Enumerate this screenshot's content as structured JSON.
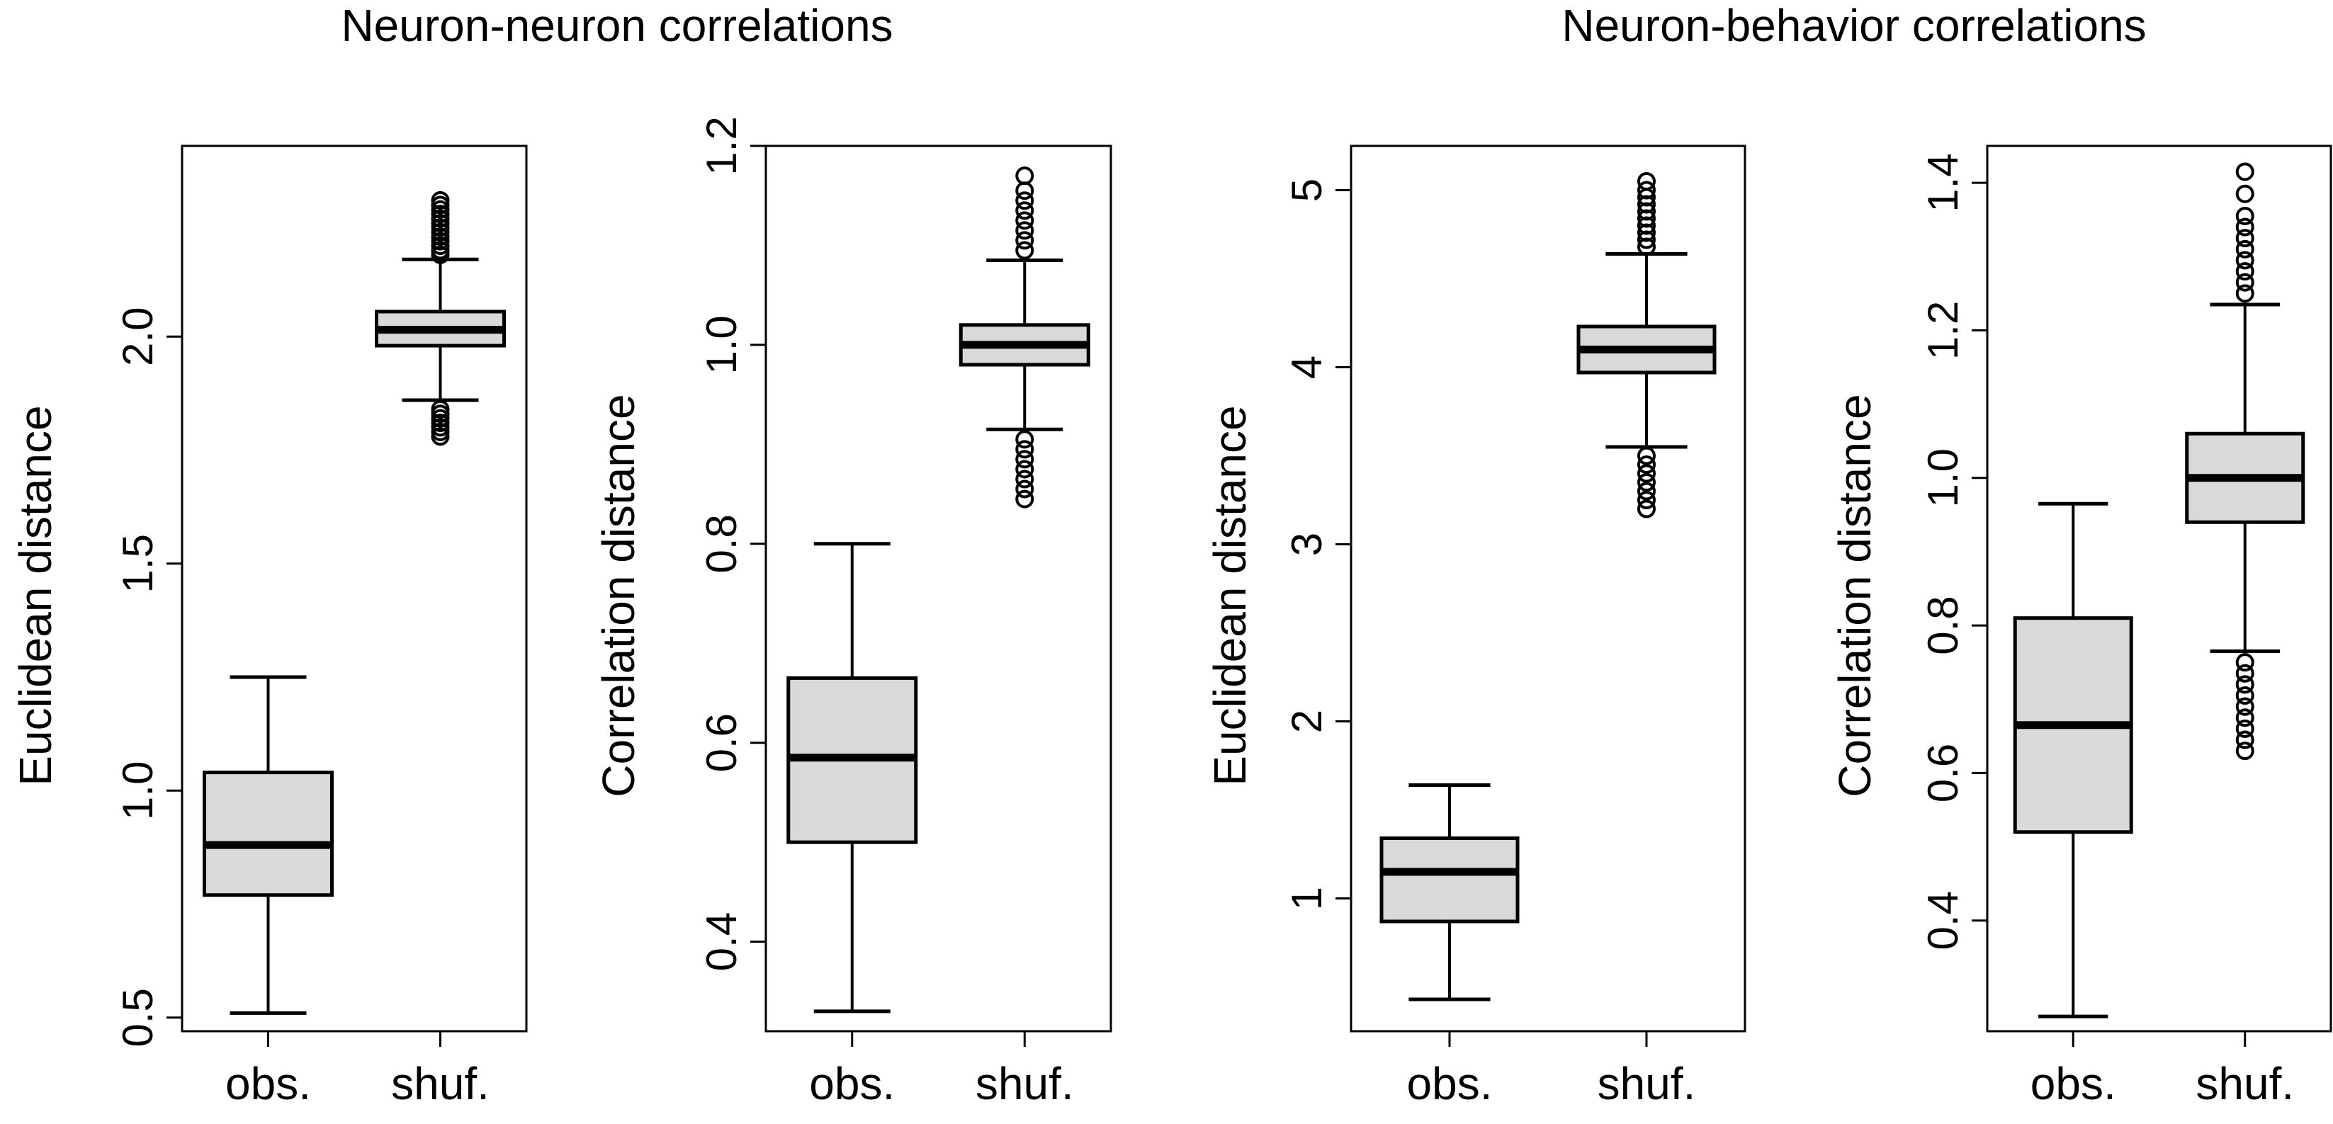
{
  "group_titles": [
    "Neuron-neuron correlations",
    "Neuron-behavior correlations"
  ],
  "colors": {
    "box_fill": "#d9d9d9",
    "line": "#000000",
    "background": "#ffffff"
  },
  "chart_data": [
    {
      "type": "boxplot",
      "group": "Neuron-neuron correlations",
      "ylabel": "Euclidean distance",
      "ylim": [
        0.47,
        2.42
      ],
      "yticks": [
        0.5,
        1.0,
        1.5,
        2.0
      ],
      "ytick_labels": [
        "0.5",
        "1.0",
        "1.5",
        "2.0"
      ],
      "categories": [
        "obs.",
        "shuf."
      ],
      "boxes": [
        {
          "label": "obs.",
          "whisker_low": 0.51,
          "q1": 0.77,
          "median": 0.88,
          "q3": 1.04,
          "whisker_high": 1.25,
          "outliers": []
        },
        {
          "label": "shuf.",
          "whisker_low": 1.86,
          "q1": 1.98,
          "median": 2.015,
          "q3": 2.055,
          "whisker_high": 2.17,
          "outliers": [
            1.78,
            1.79,
            1.8,
            1.81,
            1.82,
            1.83,
            1.84,
            2.18,
            2.19,
            2.2,
            2.21,
            2.22,
            2.23,
            2.24,
            2.25,
            2.26,
            2.27,
            2.28,
            2.29,
            2.3
          ]
        }
      ],
      "grid": false,
      "legend": false
    },
    {
      "type": "boxplot",
      "group": "Neuron-neuron correlations",
      "ylabel": "Correlation distance",
      "ylim": [
        0.31,
        1.2
      ],
      "yticks": [
        0.4,
        0.6,
        0.8,
        1.0,
        1.2
      ],
      "ytick_labels": [
        "0.4",
        "0.6",
        "0.8",
        "1.0",
        "1.2"
      ],
      "categories": [
        "obs.",
        "shuf."
      ],
      "boxes": [
        {
          "label": "obs.",
          "whisker_low": 0.33,
          "q1": 0.5,
          "median": 0.585,
          "q3": 0.665,
          "whisker_high": 0.8,
          "outliers": []
        },
        {
          "label": "shuf.",
          "whisker_low": 0.915,
          "q1": 0.98,
          "median": 1.0,
          "q3": 1.02,
          "whisker_high": 1.085,
          "outliers": [
            0.845,
            0.855,
            0.865,
            0.875,
            0.885,
            0.895,
            0.905,
            1.095,
            1.105,
            1.115,
            1.125,
            1.135,
            1.145,
            1.155,
            1.17
          ]
        }
      ],
      "grid": false,
      "legend": false
    },
    {
      "type": "boxplot",
      "group": "Neuron-behavior correlations",
      "ylabel": "Euclidean distance",
      "ylim": [
        0.25,
        5.25
      ],
      "yticks": [
        1,
        2,
        3,
        4,
        5
      ],
      "ytick_labels": [
        "1",
        "2",
        "3",
        "4",
        "5"
      ],
      "categories": [
        "obs.",
        "shuf."
      ],
      "boxes": [
        {
          "label": "obs.",
          "whisker_low": 0.43,
          "q1": 0.87,
          "median": 1.15,
          "q3": 1.34,
          "whisker_high": 1.64,
          "outliers": []
        },
        {
          "label": "shuf.",
          "whisker_low": 3.55,
          "q1": 3.97,
          "median": 4.1,
          "q3": 4.23,
          "whisker_high": 4.64,
          "outliers": [
            3.2,
            3.25,
            3.3,
            3.35,
            3.4,
            3.45,
            3.5,
            4.68,
            4.72,
            4.76,
            4.8,
            4.84,
            4.88,
            4.92,
            4.96,
            5.0,
            5.05
          ]
        }
      ],
      "grid": false,
      "legend": false
    },
    {
      "type": "boxplot",
      "group": "Neuron-behavior correlations",
      "ylabel": "Correlation distance",
      "ylim": [
        0.25,
        1.45
      ],
      "yticks": [
        0.4,
        0.6,
        0.8,
        1.0,
        1.2,
        1.4
      ],
      "ytick_labels": [
        "0.4",
        "0.6",
        "0.8",
        "1.0",
        "1.2",
        "1.4"
      ],
      "categories": [
        "obs.",
        "shuf."
      ],
      "boxes": [
        {
          "label": "obs.",
          "whisker_low": 0.27,
          "q1": 0.52,
          "median": 0.665,
          "q3": 0.81,
          "whisker_high": 0.965,
          "outliers": []
        },
        {
          "label": "shuf.",
          "whisker_low": 0.765,
          "q1": 0.94,
          "median": 1.0,
          "q3": 1.06,
          "whisker_high": 1.235,
          "outliers": [
            0.63,
            0.645,
            0.66,
            0.675,
            0.69,
            0.705,
            0.72,
            0.735,
            0.75,
            1.25,
            1.265,
            1.28,
            1.295,
            1.31,
            1.325,
            1.34,
            1.355,
            1.385,
            1.415
          ]
        }
      ],
      "grid": false,
      "legend": false
    }
  ]
}
